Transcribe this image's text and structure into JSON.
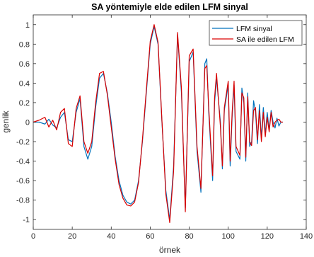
{
  "chart_data": {
    "type": "line",
    "title": "SA yöntemiyle elde edilen LFM sinyal",
    "xlabel": "örnek",
    "ylabel": "genlik",
    "xlim": [
      0,
      140
    ],
    "ylim": [
      -1.1,
      1.1
    ],
    "xticks": [
      0,
      20,
      40,
      60,
      80,
      100,
      120,
      140
    ],
    "xtick_labels": [
      "0",
      "20",
      "40",
      "60",
      "80",
      "100",
      "120",
      "140"
    ],
    "yticks": [
      -1,
      -0.8,
      -0.6,
      -0.4,
      -0.2,
      0,
      0.2,
      0.4,
      0.6,
      0.8,
      1
    ],
    "ytick_labels": [
      "-1",
      "-0.8",
      "-0.6",
      "-0.4",
      "-0.2",
      "0",
      "0.2",
      "0.4",
      "0.6",
      "0.8",
      "1"
    ],
    "grid": false,
    "legend_position": "top-right",
    "series": [
      {
        "name": "LFM sinyal",
        "color": "#0072BD",
        "x": [
          0,
          3,
          6,
          8,
          10,
          12,
          14,
          16,
          18,
          20,
          22,
          24,
          26,
          28,
          30,
          32,
          34,
          36,
          38,
          40,
          42,
          44,
          46,
          48,
          50,
          52,
          54,
          56,
          58,
          60,
          62,
          64,
          66,
          68,
          70,
          72,
          74,
          76,
          78,
          80,
          82,
          84,
          86,
          88,
          89,
          90,
          92,
          93,
          94,
          96,
          97,
          98,
          100,
          101,
          102,
          103,
          104,
          106,
          107,
          108,
          109,
          110,
          111,
          112,
          113,
          114,
          115,
          116,
          117,
          118,
          119,
          120,
          121,
          122,
          123,
          124,
          125,
          126,
          127,
          128
        ],
        "y": [
          0,
          0,
          -0.02,
          0.03,
          -0.03,
          -0.06,
          0.05,
          0.1,
          -0.18,
          -0.2,
          0.1,
          0.24,
          -0.25,
          -0.38,
          -0.25,
          0.15,
          0.45,
          0.5,
          0.3,
          0,
          -0.35,
          -0.6,
          -0.75,
          -0.82,
          -0.84,
          -0.8,
          -0.6,
          -0.2,
          0.3,
          0.8,
          0.98,
          0.8,
          0,
          -0.7,
          -1.0,
          -0.45,
          0.9,
          0.3,
          -0.88,
          0.62,
          0.72,
          -0.3,
          -0.72,
          0.6,
          0.65,
          0.1,
          -0.6,
          0.2,
          0.45,
          0.0,
          -0.48,
          0.12,
          0.38,
          -0.45,
          0.05,
          0.38,
          -0.3,
          -0.38,
          0.35,
          0.2,
          -0.4,
          0.3,
          -0.25,
          -0.2,
          0.22,
          0.1,
          -0.22,
          0.18,
          -0.16,
          0.15,
          -0.12,
          0.1,
          -0.08,
          0.12,
          0.0,
          -0.06,
          0.04,
          -0.04,
          0.0,
          0.0
        ]
      },
      {
        "name": "SA ile edilen LFM",
        "color": "#D90000",
        "x": [
          0,
          3,
          6,
          8,
          10,
          12,
          14,
          16,
          18,
          20,
          22,
          24,
          26,
          28,
          30,
          32,
          34,
          36,
          38,
          40,
          42,
          44,
          46,
          48,
          50,
          52,
          54,
          56,
          58,
          60,
          62,
          64,
          66,
          68,
          70,
          72,
          74,
          76,
          78,
          80,
          82,
          84,
          86,
          88,
          89,
          90,
          92,
          93,
          94,
          96,
          97,
          98,
          100,
          101,
          102,
          103,
          104,
          106,
          107,
          108,
          109,
          110,
          111,
          112,
          113,
          114,
          115,
          116,
          117,
          118,
          119,
          120,
          121,
          122,
          123,
          124,
          125,
          126,
          127,
          128
        ],
        "y": [
          0,
          0.02,
          0.05,
          -0.05,
          0.02,
          -0.08,
          0.1,
          0.14,
          -0.22,
          -0.25,
          0.14,
          0.27,
          -0.2,
          -0.32,
          -0.2,
          0.2,
          0.5,
          0.52,
          0.28,
          -0.05,
          -0.38,
          -0.64,
          -0.78,
          -0.85,
          -0.86,
          -0.82,
          -0.62,
          -0.18,
          0.33,
          0.83,
          1.0,
          0.82,
          0.02,
          -0.74,
          -1.03,
          -0.5,
          0.92,
          0.35,
          -0.92,
          0.68,
          0.75,
          -0.25,
          -0.68,
          0.55,
          0.58,
          0.15,
          -0.55,
          0.25,
          0.5,
          -0.05,
          -0.45,
          0.15,
          0.42,
          -0.4,
          0.1,
          0.42,
          -0.25,
          -0.34,
          0.3,
          0.25,
          -0.36,
          0.26,
          -0.2,
          -0.24,
          0.12,
          0.15,
          -0.18,
          0.12,
          -0.2,
          0.1,
          -0.15,
          0.05,
          -0.1,
          0.1,
          -0.05,
          0.0,
          0.02,
          0.03,
          0.0,
          0.0
        ]
      }
    ]
  }
}
